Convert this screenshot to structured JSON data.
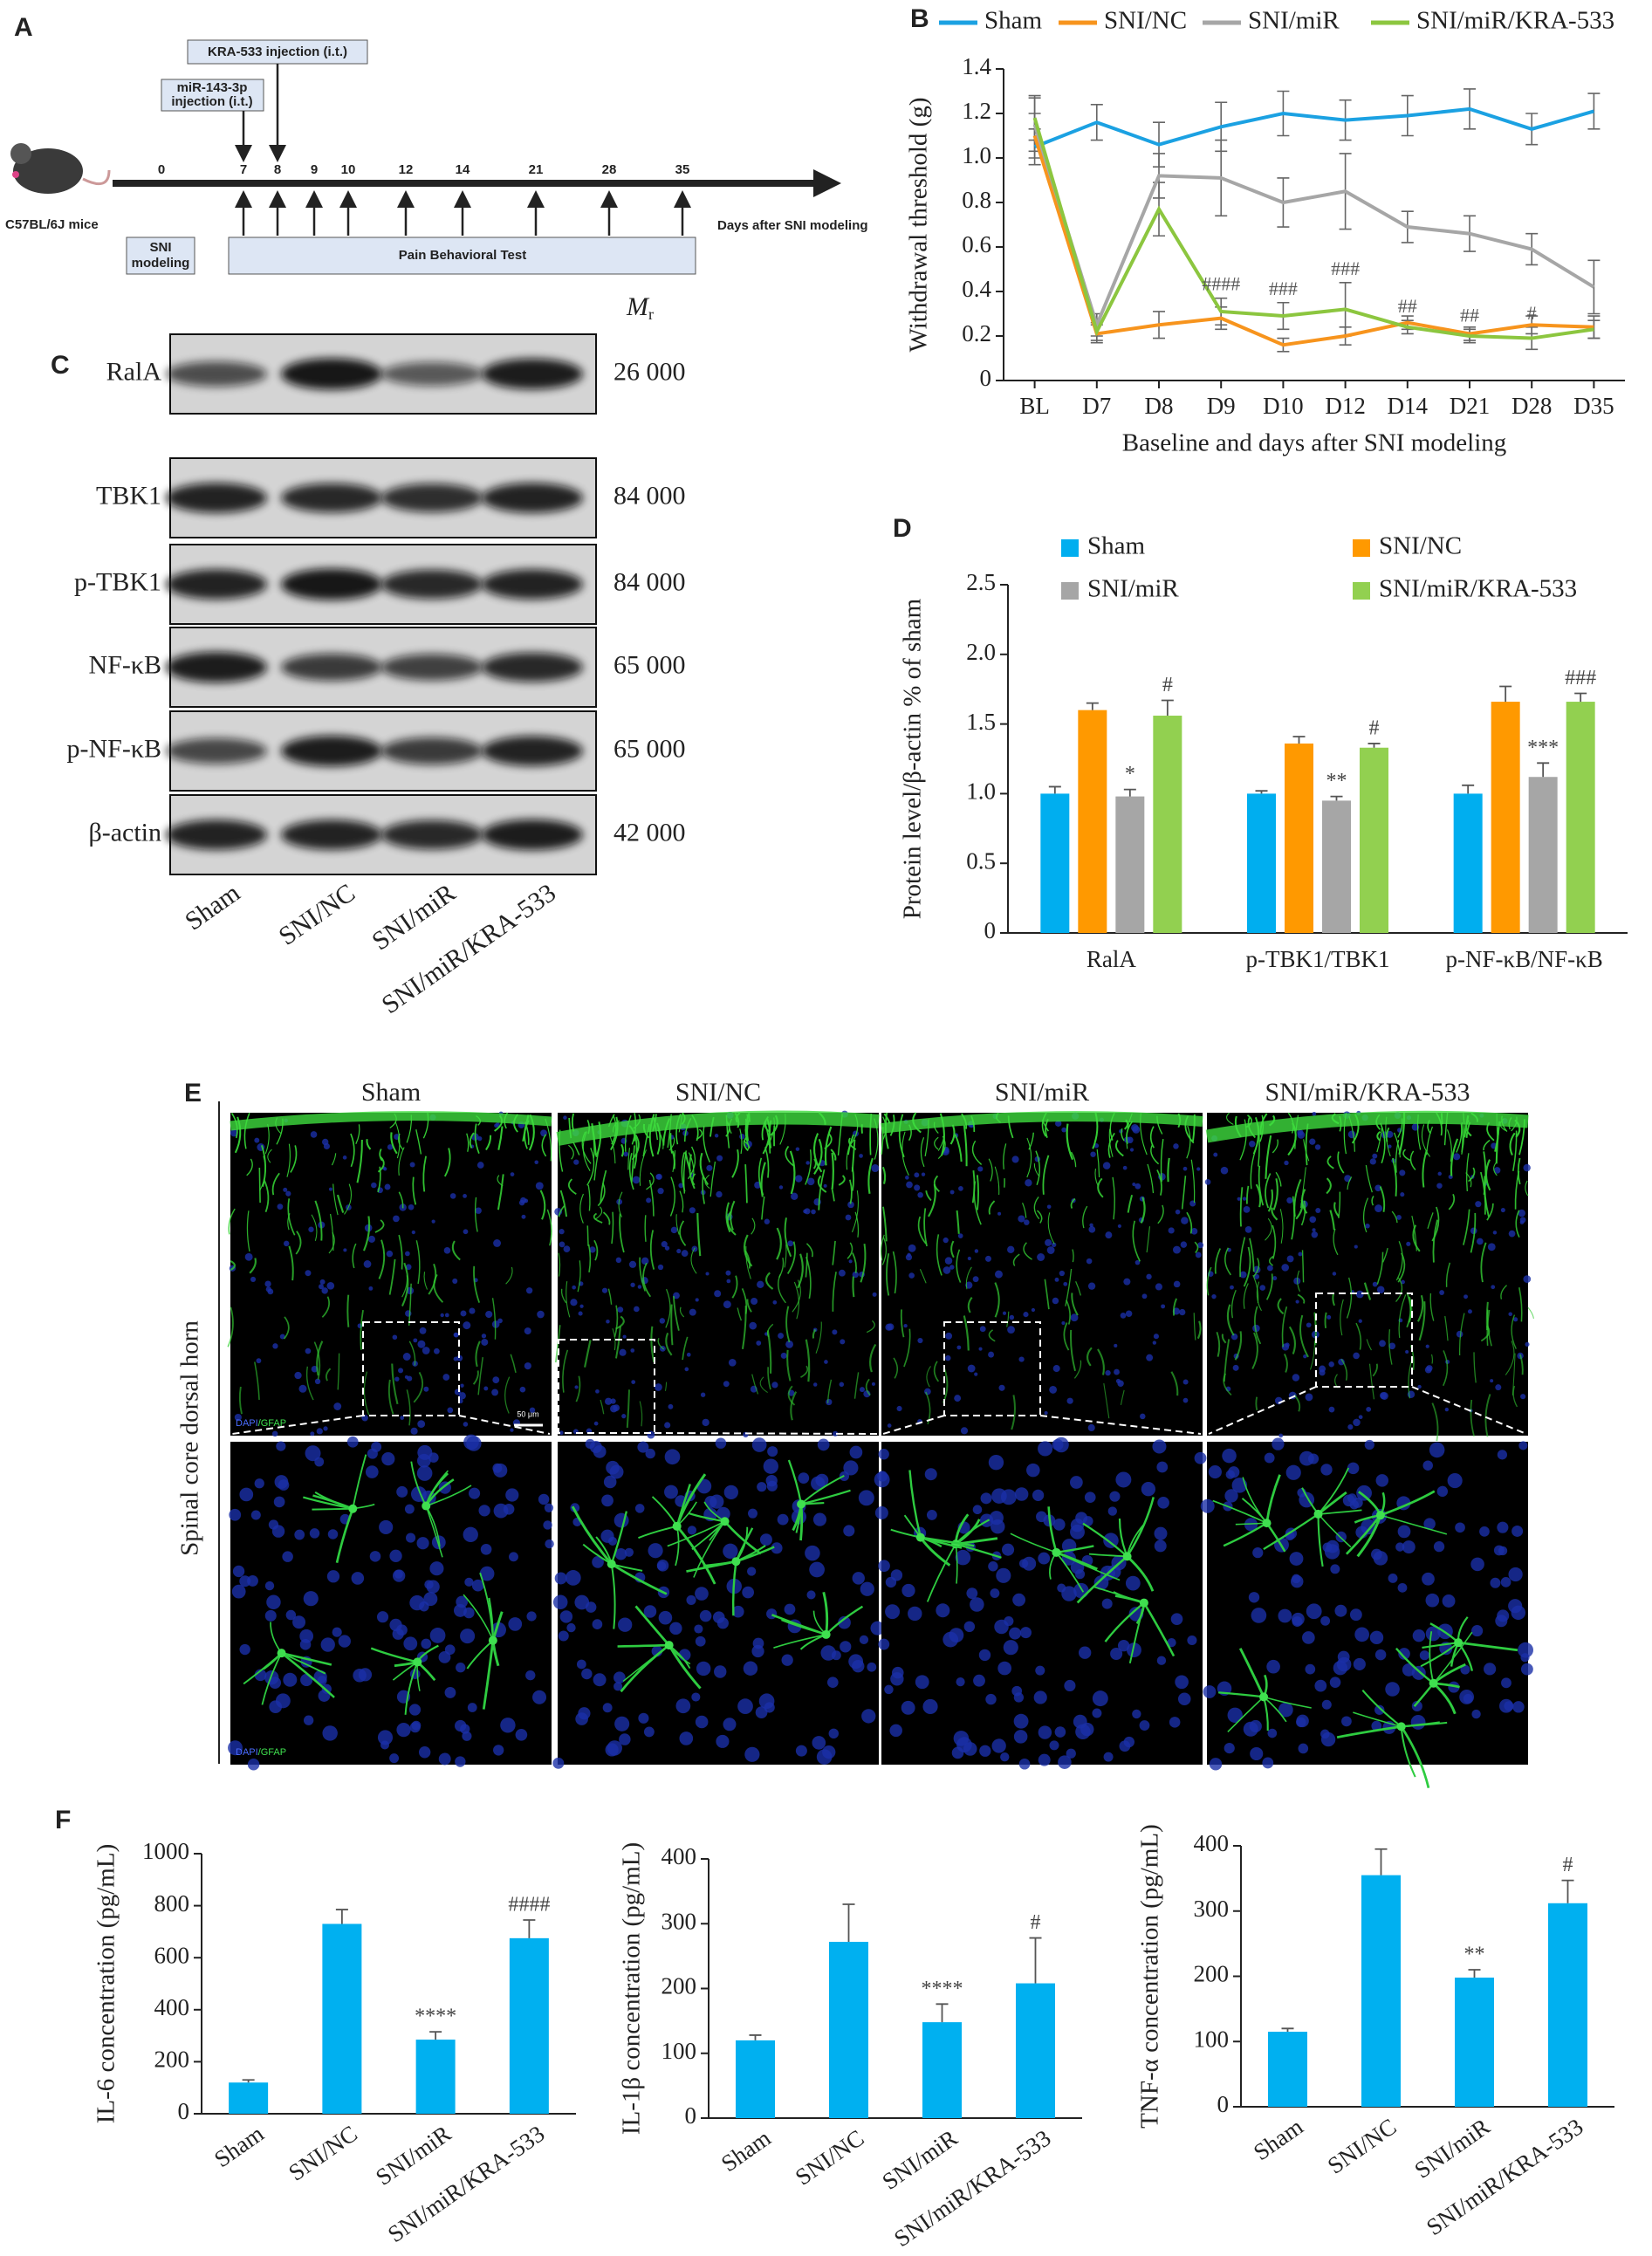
{
  "panel_labels": [
    "A",
    "B",
    "C",
    "D",
    "E",
    "F"
  ],
  "timeline": {
    "mouse": "C57BL/6J mice",
    "kra": "KRA-533 injection (i.t.)",
    "mir": [
      "miR-143-3p",
      "injection (i.t.)"
    ],
    "sni": [
      "SNI",
      "modeling"
    ],
    "pain": "Pain Behavioral Test",
    "axis_label": "Days after SNI modeling",
    "days": [
      "0",
      "7",
      "8",
      "9",
      "10",
      "12",
      "14",
      "21",
      "28",
      "35"
    ]
  },
  "western": {
    "mr": "M",
    "mr_sub": "r",
    "proteins": [
      {
        "name": "RalA",
        "mr": "26 000"
      },
      {
        "name": "TBK1",
        "mr": "84 000"
      },
      {
        "name": "p-TBK1",
        "mr": "84 000"
      },
      {
        "name": "NF-κB",
        "mr": "65 000"
      },
      {
        "name": "p-NF-κB",
        "mr": "65 000"
      },
      {
        "name": "β-actin",
        "mr": "42 000"
      }
    ],
    "lanes": [
      "Sham",
      "SNI/NC",
      "SNI/miR",
      "SNI/miR/KRA-533"
    ]
  },
  "imaging": {
    "groups": [
      "Sham",
      "SNI/NC",
      "SNI/miR",
      "SNI/miR/KRA-533"
    ],
    "side_label": "Spinal core dorsal horn",
    "stain": [
      "DAPI",
      "/GFAP"
    ],
    "scale_bar": "50 μm"
  },
  "chart_data": [
    {
      "type": "line",
      "y_label": "Withdrawal threshold (g)",
      "x_label": "Baseline and days after SNI modeling",
      "categories": [
        "BL",
        "D7",
        "D8",
        "D9",
        "D10",
        "D12",
        "D14",
        "D21",
        "D28",
        "D35"
      ],
      "ylim": [
        0,
        1.4
      ],
      "yticks": [
        0,
        0.2,
        0.4,
        0.6,
        0.8,
        {
          "value": 1,
          "label": "1.0"
        },
        1.2,
        1.4
      ],
      "legend": "top",
      "series": [
        {
          "name": "Sham",
          "color": "#1ba1e2",
          "values": [
            1.05,
            1.16,
            1.06,
            1.14,
            1.2,
            1.17,
            1.19,
            1.22,
            1.13,
            1.21
          ],
          "errors": [
            0.08,
            0.08,
            0.1,
            0.11,
            0.1,
            0.09,
            0.09,
            0.09,
            0.07,
            0.08
          ]
        },
        {
          "name": "SNI/NC",
          "color": "#f7941d",
          "values": [
            1.1,
            0.21,
            0.25,
            0.28,
            0.16,
            0.2,
            0.26,
            0.21,
            0.25,
            0.24
          ],
          "errors": [
            0.1,
            0.04,
            0.06,
            0.05,
            0.03,
            0.04,
            0.03,
            0.03,
            0.04,
            0.05
          ]
        },
        {
          "name": "SNI/miR",
          "color": "#a6a6a6",
          "values": [
            1.15,
            0.25,
            0.92,
            0.91,
            0.8,
            0.85,
            0.69,
            0.66,
            0.59,
            0.42
          ],
          "errors": [
            0.12,
            0.05,
            0.1,
            0.17,
            0.11,
            0.17,
            0.07,
            0.08,
            0.07,
            0.12
          ]
        },
        {
          "name": "SNI/miR/KRA-533",
          "color": "#8cc63f",
          "values": [
            1.18,
            0.22,
            0.77,
            0.31,
            0.29,
            0.32,
            0.24,
            0.2,
            0.19,
            0.23
          ],
          "errors": [
            0.1,
            0.04,
            0.12,
            0.06,
            0.06,
            0.12,
            0.03,
            0.03,
            0.05,
            0.04
          ],
          "annotations": [
            null,
            null,
            null,
            "####",
            "###",
            "###",
            "##",
            "##",
            "#",
            null
          ]
        }
      ]
    },
    {
      "type": "bar",
      "y_label": "Protein level/β-actin % of sham",
      "categories": [
        "RalA",
        "p-TBK1/TBK1",
        "p-NF-κB/NF-κB"
      ],
      "ylim": [
        0,
        2.5
      ],
      "yticks": [
        0,
        0.5,
        {
          "value": 1,
          "label": "1.0"
        },
        1.5,
        {
          "value": 2,
          "label": "2.0"
        },
        2.5
      ],
      "legend": "top",
      "series": [
        {
          "name": "Sham",
          "color": "#00aeef",
          "values": [
            1.0,
            1.0,
            1.0
          ],
          "errors": [
            0.05,
            0.02,
            0.06
          ]
        },
        {
          "name": "SNI/NC",
          "color": "#ff9900",
          "values": [
            1.6,
            1.36,
            1.66
          ],
          "errors": [
            0.05,
            0.05,
            0.11
          ]
        },
        {
          "name": "SNI/miR",
          "color": "#a6a6a6",
          "values": [
            0.98,
            0.95,
            1.12
          ],
          "errors": [
            0.05,
            0.03,
            0.1
          ],
          "annotations": [
            "*",
            "**",
            "***"
          ]
        },
        {
          "name": "SNI/miR/KRA-533",
          "color": "#92d050",
          "values": [
            1.56,
            1.33,
            1.66
          ],
          "errors": [
            0.11,
            0.03,
            0.06
          ],
          "annotations": [
            "#",
            "#",
            "###"
          ]
        }
      ]
    },
    {
      "type": "bar",
      "y_label": "IL-6 concentration (pg/mL)",
      "color": "#00b0f0",
      "categories": [
        "Sham",
        "SNI/NC",
        "SNI/miR",
        "SNI/miR/KRA-533"
      ],
      "values": [
        120,
        730,
        285,
        675
      ],
      "errors": [
        10,
        55,
        30,
        70
      ],
      "annotations": [
        null,
        null,
        "****",
        "####"
      ],
      "ylim": [
        0,
        1000
      ],
      "yticks": [
        0,
        200,
        400,
        600,
        800,
        1000
      ]
    },
    {
      "type": "bar",
      "y_label": "IL-1β concentration (pg/mL)",
      "color": "#00b0f0",
      "categories": [
        "Sham",
        "SNI/NC",
        "SNI/miR",
        "SNI/miR/KRA-533"
      ],
      "values": [
        120,
        272,
        148,
        208
      ],
      "errors": [
        8,
        58,
        28,
        70
      ],
      "annotations": [
        null,
        null,
        "****",
        "#"
      ],
      "ylim": [
        0,
        400
      ],
      "yticks": [
        0,
        100,
        200,
        300,
        400
      ]
    },
    {
      "type": "bar",
      "y_label": "TNF-α concentration (pg/mL)",
      "color": "#00b0f0",
      "categories": [
        "Sham",
        "SNI/NC",
        "SNI/miR",
        "SNI/miR/KRA-533"
      ],
      "values": [
        115,
        355,
        198,
        312
      ],
      "errors": [
        5,
        40,
        12,
        35
      ],
      "annotations": [
        null,
        null,
        "**",
        "#"
      ],
      "ylim": [
        0,
        400
      ],
      "yticks": [
        0,
        100,
        200,
        300,
        400
      ]
    }
  ]
}
